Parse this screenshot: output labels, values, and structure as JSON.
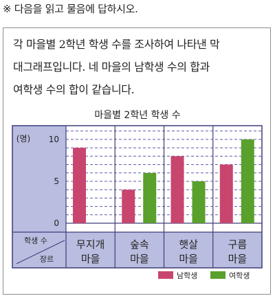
{
  "instruction": "※ 다음을 읽고 물음에 답하시오.",
  "problem": {
    "lines": [
      "각 마을별 2학년 학생 수를 조사하여 나타낸 막",
      "대그래프입니다. 네 마을의 남학생 수의 합과",
      "여학생 수의 합이 같습니다."
    ]
  },
  "chart_data": {
    "type": "bar",
    "title": "마을별 2학년 학생 수",
    "ylabel": "(명)",
    "corner_top_label": "학생 수",
    "corner_bottom_label": "장르",
    "categories": [
      "무지개\n마을",
      "숲속\n마을",
      "햇살\n마을",
      "구름\n마을"
    ],
    "category_lines": [
      [
        "무지개",
        "마을"
      ],
      [
        "숲속",
        "마을"
      ],
      [
        "햇살",
        "마을"
      ],
      [
        "구름",
        "마을"
      ]
    ],
    "yticks": [
      "0",
      "5",
      "10"
    ],
    "ylim": [
      0,
      11
    ],
    "series": [
      {
        "name": "남학생",
        "values": [
          9,
          4,
          8,
          7
        ],
        "color": "#c8466e"
      },
      {
        "name": "여학생",
        "values": [
          null,
          6,
          5,
          10
        ],
        "color": "#5aa02c"
      }
    ],
    "grid": true,
    "legend_position": "bottom-right"
  },
  "colors": {
    "axis_panel": "#b9bde0",
    "plot_bg": "#ffffff",
    "grid": "#5a5aa8",
    "frame": "#3c3c78"
  }
}
